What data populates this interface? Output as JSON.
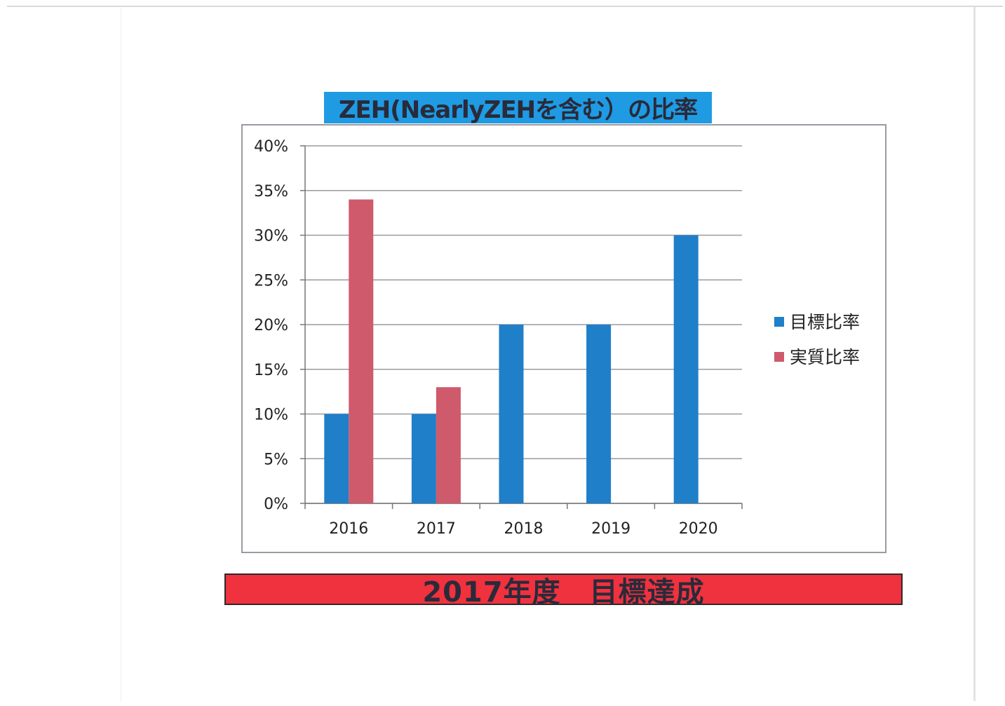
{
  "header": {
    "title": "ZEH(NearlyZEHを含む）の比率"
  },
  "footer": {
    "banner": "2017年度　目標達成"
  },
  "colors": {
    "title_bg": "#1e9be3",
    "footer_bg": "#f0323e",
    "target": "#1f7fc9",
    "actual": "#cf5a6c"
  },
  "chart_data": {
    "type": "bar",
    "title": "ZEH(NearlyZEHを含む）の比率",
    "categories": [
      "2016",
      "2017",
      "2018",
      "2019",
      "2020"
    ],
    "series": [
      {
        "name": "目標比率",
        "color": "#1f7fc9",
        "values": [
          0.1,
          0.1,
          0.2,
          0.2,
          0.3
        ]
      },
      {
        "name": "実質比率",
        "color": "#cf5a6c",
        "values": [
          0.34,
          0.13,
          null,
          null,
          null
        ]
      }
    ],
    "ylim": [
      0,
      0.4
    ],
    "yticks": [
      {
        "value": 0.0,
        "label": "0%"
      },
      {
        "value": 0.05,
        "label": "5%"
      },
      {
        "value": 0.1,
        "label": "10%"
      },
      {
        "value": 0.15,
        "label": "15%"
      },
      {
        "value": 0.2,
        "label": "20%"
      },
      {
        "value": 0.25,
        "label": "25%"
      },
      {
        "value": 0.3,
        "label": "30%"
      },
      {
        "value": 0.35,
        "label": "35%"
      },
      {
        "value": 0.4,
        "label": "40%"
      }
    ],
    "grid": true,
    "legend": "right"
  }
}
